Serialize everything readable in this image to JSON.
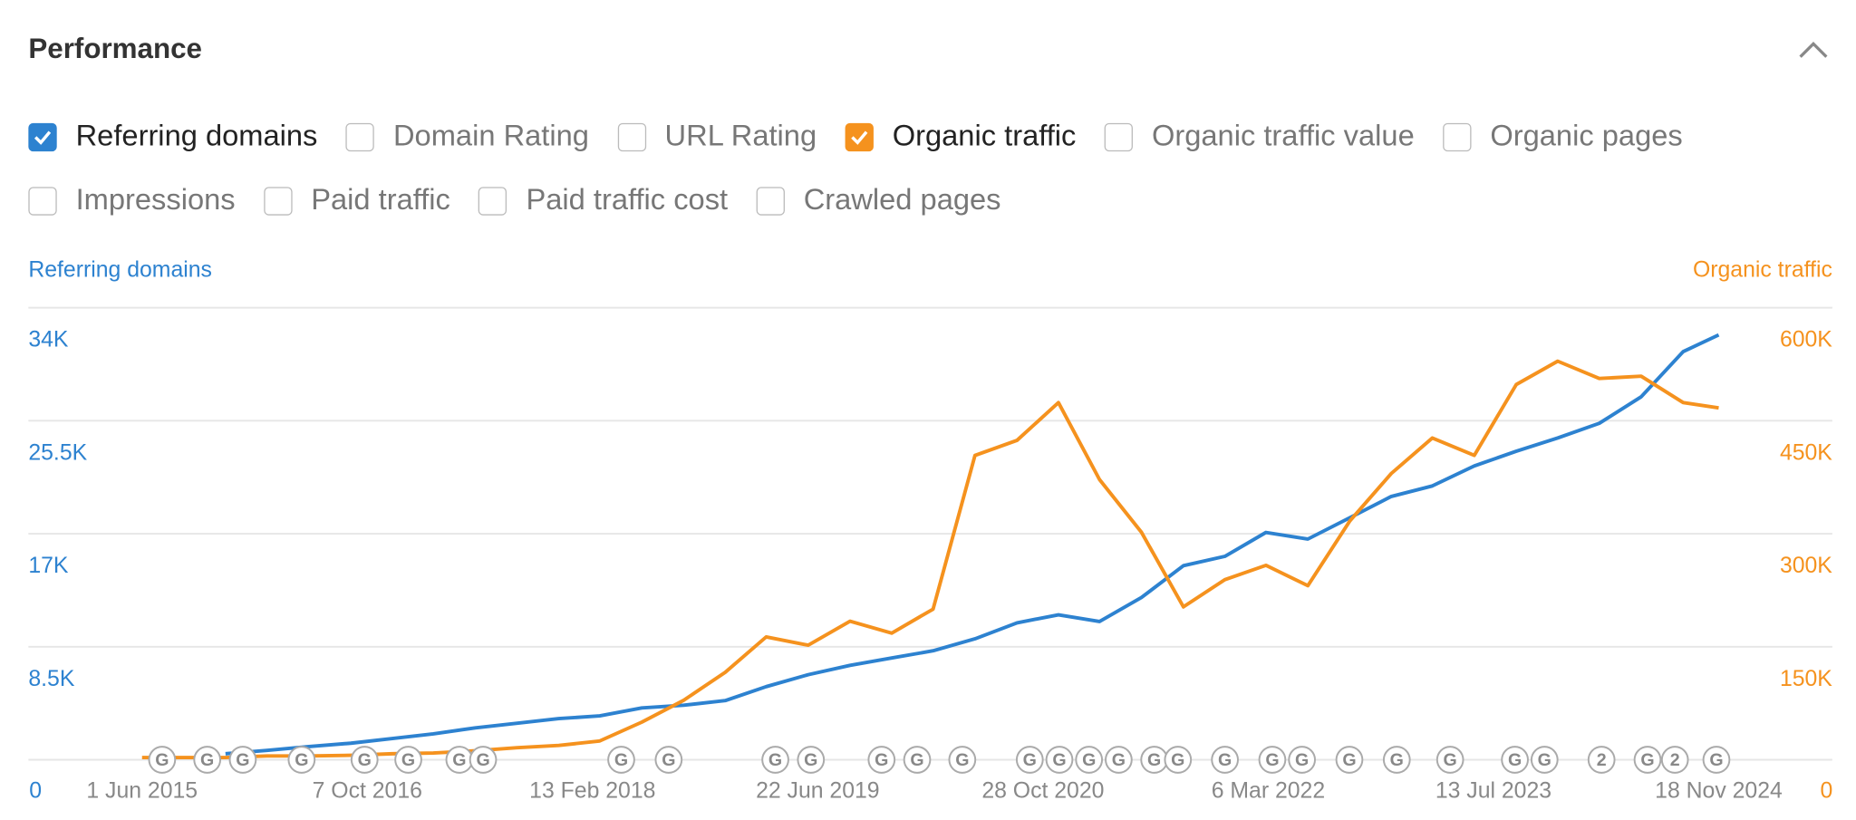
{
  "panel": {
    "title": "Performance",
    "options": [
      [
        {
          "label": "Referring domains",
          "checked": true
        },
        {
          "label": "Domain Rating",
          "checked": false
        },
        {
          "label": "URL Rating",
          "checked": false
        },
        {
          "label": "Organic traffic",
          "checked": true
        },
        {
          "label": "Organic traffic value",
          "checked": false
        },
        {
          "label": "Organic pages",
          "checked": false
        }
      ],
      [
        {
          "label": "Impressions",
          "checked": false
        },
        {
          "label": "Paid traffic",
          "checked": false
        },
        {
          "label": "Paid traffic cost",
          "checked": false
        },
        {
          "label": "Crawled pages",
          "checked": false
        }
      ]
    ]
  },
  "chart_data": {
    "type": "line",
    "ylabel": "Referring domains",
    "y2label": "Organic traffic",
    "grid": true,
    "x": [
      "2015-06-01",
      "2015-09-01",
      "2015-12-01",
      "2016-03-01",
      "2016-06-01",
      "2016-09-01",
      "2016-12-01",
      "2017-03-01",
      "2017-06-01",
      "2017-09-01",
      "2017-12-01",
      "2018-03-01",
      "2018-06-01",
      "2018-09-01",
      "2018-12-01",
      "2019-03-01",
      "2019-06-01",
      "2019-09-01",
      "2019-12-01",
      "2020-03-01",
      "2020-06-01",
      "2020-09-01",
      "2020-12-01",
      "2021-03-01",
      "2021-06-01",
      "2021-09-01",
      "2021-12-01",
      "2022-03-01",
      "2022-06-01",
      "2022-09-01",
      "2022-12-01",
      "2023-03-01",
      "2023-06-01",
      "2023-09-01",
      "2023-12-01",
      "2024-03-01",
      "2024-06-01",
      "2024-09-01",
      "2024-11-18"
    ],
    "xlim": [
      "2015-06-01",
      "2024-11-18"
    ],
    "xticks": [
      {
        "value": "2015-06-01",
        "label": "1 Jun 2015"
      },
      {
        "value": "2016-10-07",
        "label": "7 Oct 2016"
      },
      {
        "value": "2018-02-13",
        "label": "13 Feb 2018"
      },
      {
        "value": "2019-06-22",
        "label": "22 Jun 2019"
      },
      {
        "value": "2020-10-28",
        "label": "28 Oct 2020"
      },
      {
        "value": "2022-03-06",
        "label": "6 Mar 2022"
      },
      {
        "value": "2023-07-13",
        "label": "13 Jul 2023"
      },
      {
        "value": "2024-11-18",
        "label": "18 Nov 2024"
      }
    ],
    "ylim": [
      0,
      34000
    ],
    "yticks": [
      0,
      {
        "value": 8500,
        "label": "8.5K"
      },
      {
        "value": 17000,
        "label": "17K"
      },
      {
        "value": 25500,
        "label": "25.5K"
      },
      {
        "value": 34000,
        "label": "34K"
      }
    ],
    "y2lim": [
      0,
      600000
    ],
    "y2ticks": [
      0,
      {
        "value": 150000,
        "label": "150K"
      },
      {
        "value": 300000,
        "label": "300K"
      },
      {
        "value": 450000,
        "label": "450K"
      },
      {
        "value": 600000,
        "label": "600K"
      }
    ],
    "series": [
      {
        "name": "Referring domains",
        "color": "#2d82d0",
        "values": [
          null,
          null,
          450,
          700,
          1000,
          1250,
          1600,
          1950,
          2400,
          2750,
          3100,
          3300,
          3900,
          4100,
          4450,
          5500,
          6400,
          7100,
          7650,
          8200,
          9100,
          10300,
          10900,
          10400,
          12200,
          14600,
          15300,
          17100,
          16600,
          18200,
          19800,
          20600,
          22100,
          23200,
          24200,
          25300,
          27300,
          30700,
          31950
        ]
      },
      {
        "name": "Organic traffic",
        "color": "#f5921e",
        "axis": "y2",
        "values": [
          3000,
          3000,
          3000,
          5000,
          5000,
          6000,
          8000,
          9000,
          12000,
          16000,
          19000,
          25000,
          50000,
          79000,
          116000,
          163000,
          152000,
          184000,
          168000,
          200000,
          404000,
          424000,
          474000,
          372000,
          302000,
          203000,
          239000,
          258000,
          231000,
          317000,
          380000,
          427000,
          404000,
          498000,
          529000,
          506000,
          509000,
          474000,
          467000
        ]
      }
    ],
    "annotations": [
      {
        "x": "2015-07-15",
        "label": "G"
      },
      {
        "x": "2015-10-22",
        "label": "G"
      },
      {
        "x": "2016-01-08",
        "label": "G"
      },
      {
        "x": "2016-05-16",
        "label": "G"
      },
      {
        "x": "2016-10-01",
        "label": "G"
      },
      {
        "x": "2017-01-05",
        "label": "G"
      },
      {
        "x": "2017-04-27",
        "label": "G"
      },
      {
        "x": "2017-06-18",
        "label": "G"
      },
      {
        "x": "2018-04-17",
        "label": "G"
      },
      {
        "x": "2018-07-30",
        "label": "G"
      },
      {
        "x": "2019-03-21",
        "label": "G"
      },
      {
        "x": "2019-06-07",
        "label": "G"
      },
      {
        "x": "2019-11-09",
        "label": "G"
      },
      {
        "x": "2020-01-26",
        "label": "G"
      },
      {
        "x": "2020-05-04",
        "label": "G"
      },
      {
        "x": "2020-09-29",
        "label": "G"
      },
      {
        "x": "2020-12-03",
        "label": "G"
      },
      {
        "x": "2021-02-06",
        "label": "G"
      },
      {
        "x": "2021-04-12",
        "label": "G"
      },
      {
        "x": "2021-06-29",
        "label": "G"
      },
      {
        "x": "2021-08-20",
        "label": "G"
      },
      {
        "x": "2021-12-01",
        "label": "G"
      },
      {
        "x": "2022-03-15",
        "label": "G"
      },
      {
        "x": "2022-05-19",
        "label": "G"
      },
      {
        "x": "2022-08-31",
        "label": "G"
      },
      {
        "x": "2022-12-13",
        "label": "G"
      },
      {
        "x": "2023-04-09",
        "label": "G"
      },
      {
        "x": "2023-08-29",
        "label": "G"
      },
      {
        "x": "2023-11-02",
        "label": "G"
      },
      {
        "x": "2024-03-06",
        "label": "2"
      },
      {
        "x": "2024-06-15",
        "label": "G"
      },
      {
        "x": "2024-08-14",
        "label": "2"
      },
      {
        "x": "2024-11-13",
        "label": "G"
      }
    ]
  }
}
